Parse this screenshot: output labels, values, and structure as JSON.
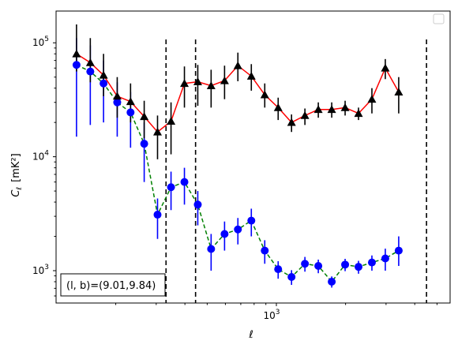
{
  "chart_data": {
    "type": "scatter",
    "xscale": "log",
    "yscale": "log",
    "xlim": [
      110,
      5700
    ],
    "ylim": [
      520,
      190000
    ],
    "xlabel": "ℓ",
    "ylabel": "C",
    "ylabel_sub": "ℓ",
    "ylabel_unit": "[mK²]",
    "x_ticks": [
      {
        "value": 1000,
        "base": "10",
        "exp": "3"
      }
    ],
    "y_ticks": [
      {
        "value": 1000,
        "base": "10",
        "exp": "3"
      },
      {
        "value": 10000,
        "base": "10",
        "exp": "4"
      },
      {
        "value": 100000,
        "base": "10",
        "exp": "5"
      }
    ],
    "vlines": [
      331,
      445,
      4500
    ],
    "annotation": "(l, b)=(9.01,9.84)",
    "legend": "top-right",
    "series": [
      {
        "marker": "triangle",
        "color": "#000000",
        "line_color": "#ff0000",
        "line_style": "solid",
        "points": [
          {
            "x": 135,
            "y": 80000,
            "lo": 56000,
            "hi": 145000
          },
          {
            "x": 155,
            "y": 67000,
            "lo": 45000,
            "hi": 110000
          },
          {
            "x": 177,
            "y": 52000,
            "lo": 34000,
            "hi": 80000
          },
          {
            "x": 203,
            "y": 34000,
            "lo": 22000,
            "hi": 50000
          },
          {
            "x": 232,
            "y": 30500,
            "lo": 20000,
            "hi": 44000
          },
          {
            "x": 266,
            "y": 22500,
            "lo": 14500,
            "hi": 31000
          },
          {
            "x": 304,
            "y": 16500,
            "lo": 9500,
            "hi": 23000
          },
          {
            "x": 348,
            "y": 20500,
            "lo": 10500,
            "hi": 30000
          },
          {
            "x": 398,
            "y": 44000,
            "lo": 27000,
            "hi": 62000
          },
          {
            "x": 455,
            "y": 45500,
            "lo": 28000,
            "hi": 64000
          },
          {
            "x": 520,
            "y": 42000,
            "lo": 27000,
            "hi": 58000
          },
          {
            "x": 595,
            "y": 46500,
            "lo": 32000,
            "hi": 63000
          },
          {
            "x": 680,
            "y": 63000,
            "lo": 46000,
            "hi": 82000
          },
          {
            "x": 778,
            "y": 51000,
            "lo": 38000,
            "hi": 65000
          },
          {
            "x": 890,
            "y": 35000,
            "lo": 27000,
            "hi": 44000
          },
          {
            "x": 1018,
            "y": 27000,
            "lo": 21000,
            "hi": 33000
          },
          {
            "x": 1164,
            "y": 20000,
            "lo": 16500,
            "hi": 23500
          },
          {
            "x": 1331,
            "y": 23000,
            "lo": 19000,
            "hi": 26500
          },
          {
            "x": 1522,
            "y": 26000,
            "lo": 22000,
            "hi": 30000
          },
          {
            "x": 1741,
            "y": 26000,
            "lo": 22000,
            "hi": 30000
          },
          {
            "x": 1991,
            "y": 27000,
            "lo": 23000,
            "hi": 31000
          },
          {
            "x": 2277,
            "y": 24000,
            "lo": 21000,
            "hi": 27000
          },
          {
            "x": 2604,
            "y": 32000,
            "lo": 24000,
            "hi": 40000
          },
          {
            "x": 2978,
            "y": 60000,
            "lo": 48000,
            "hi": 72000
          },
          {
            "x": 3406,
            "y": 37000,
            "lo": 24000,
            "hi": 50000
          }
        ]
      },
      {
        "marker": "circle",
        "color": "#0000ff",
        "line_color": "#008000",
        "line_style": "dashed",
        "points": [
          {
            "x": 135,
            "y": 64000,
            "lo": 15000,
            "hi": 110000
          },
          {
            "x": 155,
            "y": 56000,
            "lo": 19000,
            "hi": 95000
          },
          {
            "x": 177,
            "y": 44000,
            "lo": 20000,
            "hi": 70000
          },
          {
            "x": 203,
            "y": 30000,
            "lo": 15000,
            "hi": 45000
          },
          {
            "x": 232,
            "y": 24500,
            "lo": 12000,
            "hi": 37000
          },
          {
            "x": 266,
            "y": 13000,
            "lo": 6000,
            "hi": 20000
          },
          {
            "x": 304,
            "y": 3100,
            "lo": 1900,
            "hi": 4300
          },
          {
            "x": 348,
            "y": 5400,
            "lo": 3400,
            "hi": 7400
          },
          {
            "x": 398,
            "y": 6000,
            "lo": 3800,
            "hi": 8000
          },
          {
            "x": 455,
            "y": 3800,
            "lo": 2500,
            "hi": 5000
          },
          {
            "x": 520,
            "y": 1550,
            "lo": 1000,
            "hi": 2100
          },
          {
            "x": 595,
            "y": 2100,
            "lo": 1500,
            "hi": 2700
          },
          {
            "x": 680,
            "y": 2300,
            "lo": 1700,
            "hi": 2900
          },
          {
            "x": 778,
            "y": 2750,
            "lo": 2000,
            "hi": 3500
          },
          {
            "x": 890,
            "y": 1500,
            "lo": 1150,
            "hi": 1850
          },
          {
            "x": 1018,
            "y": 1030,
            "lo": 850,
            "hi": 1210
          },
          {
            "x": 1164,
            "y": 880,
            "lo": 750,
            "hi": 1010
          },
          {
            "x": 1331,
            "y": 1150,
            "lo": 980,
            "hi": 1320
          },
          {
            "x": 1522,
            "y": 1100,
            "lo": 950,
            "hi": 1250
          },
          {
            "x": 1741,
            "y": 800,
            "lo": 710,
            "hi": 890
          },
          {
            "x": 1991,
            "y": 1130,
            "lo": 990,
            "hi": 1270
          },
          {
            "x": 2277,
            "y": 1080,
            "lo": 940,
            "hi": 1220
          },
          {
            "x": 2604,
            "y": 1180,
            "lo": 1000,
            "hi": 1360
          },
          {
            "x": 2978,
            "y": 1280,
            "lo": 1000,
            "hi": 1560
          },
          {
            "x": 3406,
            "y": 1500,
            "lo": 1100,
            "hi": 2000
          }
        ]
      }
    ]
  }
}
